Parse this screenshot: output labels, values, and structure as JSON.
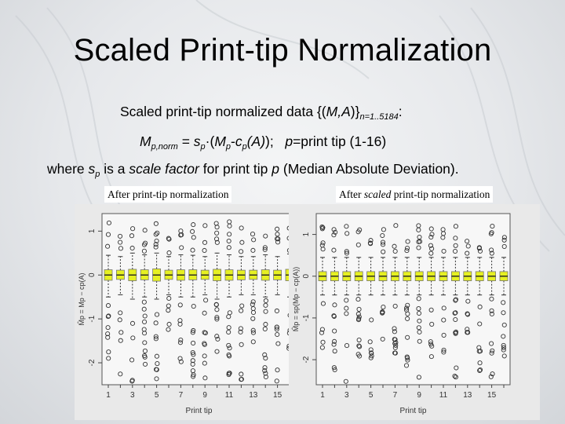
{
  "title": "Scaled Print-tip Normalization",
  "line1": {
    "text": "Scaled print-tip normalized data {(",
    "math": "M,A",
    "close": ")}",
    "sub": "n=1..5184",
    "colon": ":"
  },
  "line2": {
    "m": "M",
    "m_sub": "p,norm",
    "eq": " = ",
    "s": "s",
    "s_sub": "p",
    "dot": "·(",
    "mp": "M",
    "mp_sub": "p",
    "dash": "-",
    "c": "c",
    "c_sub": "p",
    "a": "(A)",
    "end": "); ",
    "p": "p",
    "tail": "=print tip (1-16)"
  },
  "line3": {
    "pre": "where ",
    "s": "s",
    "s_sub": "p",
    "mid": " is a ",
    "scale": "scale factor",
    "mid2": " for print tip ",
    "p": "p",
    "tail": " (Median Absolute Deviation)."
  },
  "panels": {
    "left_label": "After print-tip normalization",
    "right_label_pre": "After ",
    "right_label_em": "scaled",
    "right_label_post": " print-tip normalization"
  },
  "chart_data": [
    {
      "type": "box",
      "title": "After print-tip normalization",
      "xlabel": "Print tip",
      "ylabel": "M̂p = Mp − cp(A)",
      "x_tick_labels": [
        "1",
        "3",
        "5",
        "7",
        "9",
        "11",
        "13",
        "15"
      ],
      "y_ticks": [
        -2,
        -1,
        0,
        1
      ],
      "ylim": [
        -2.5,
        1.4
      ],
      "categories": [
        1,
        2,
        3,
        4,
        5,
        6,
        7,
        8,
        9,
        10,
        11,
        12,
        13,
        14,
        15,
        16
      ],
      "medians": [
        0,
        0,
        0,
        0,
        0,
        0,
        0,
        0,
        0,
        0,
        0,
        0,
        0,
        0,
        0,
        0
      ],
      "q1": [
        -0.12,
        -0.1,
        -0.13,
        -0.11,
        -0.14,
        -0.1,
        -0.12,
        -0.11,
        -0.1,
        -0.13,
        -0.12,
        -0.11,
        -0.1,
        -0.12,
        -0.11,
        -0.13
      ],
      "q3": [
        0.12,
        0.11,
        0.13,
        0.12,
        0.14,
        0.11,
        0.12,
        0.12,
        0.11,
        0.13,
        0.12,
        0.11,
        0.11,
        0.12,
        0.11,
        0.13
      ],
      "whisker_low": [
        -0.5,
        -0.45,
        -0.55,
        -0.5,
        -0.55,
        -0.45,
        -0.5,
        -0.5,
        -0.45,
        -0.55,
        -0.5,
        -0.45,
        -0.45,
        -0.5,
        -0.45,
        -0.5
      ],
      "whisker_high": [
        0.45,
        0.42,
        0.5,
        0.46,
        0.5,
        0.42,
        0.46,
        0.45,
        0.42,
        0.5,
        0.46,
        0.42,
        0.42,
        0.46,
        0.42,
        0.48
      ],
      "box_color": "#e6f022",
      "outlier_color": "#333333"
    },
    {
      "type": "box",
      "title": "After scaled print-tip normalization",
      "xlabel": "Print tip",
      "ylabel": "M̂p = sp(Mp − cp(A))",
      "x_tick_labels": [
        "1",
        "3",
        "5",
        "7",
        "9",
        "11",
        "13",
        "15"
      ],
      "y_ticks": [
        -2,
        -1,
        0,
        1
      ],
      "ylim": [
        -2.6,
        1.5
      ],
      "categories": [
        1,
        2,
        3,
        4,
        5,
        6,
        7,
        8,
        9,
        10,
        11,
        12,
        13,
        14,
        15,
        16
      ],
      "medians": [
        0,
        0,
        0,
        0,
        0,
        0,
        0,
        0,
        0,
        0,
        0,
        0,
        0,
        0,
        0,
        0
      ],
      "q1": [
        -0.11,
        -0.11,
        -0.11,
        -0.11,
        -0.11,
        -0.11,
        -0.11,
        -0.11,
        -0.11,
        -0.11,
        -0.11,
        -0.11,
        -0.11,
        -0.11,
        -0.11,
        -0.11
      ],
      "q3": [
        0.11,
        0.11,
        0.11,
        0.11,
        0.11,
        0.11,
        0.11,
        0.11,
        0.11,
        0.11,
        0.11,
        0.11,
        0.11,
        0.11,
        0.11,
        0.11
      ],
      "whisker_low": [
        -0.45,
        -0.45,
        -0.45,
        -0.45,
        -0.45,
        -0.45,
        -0.45,
        -0.45,
        -0.45,
        -0.45,
        -0.45,
        -0.45,
        -0.45,
        -0.45,
        -0.45,
        -0.45
      ],
      "whisker_high": [
        0.45,
        0.45,
        0.45,
        0.45,
        0.45,
        0.45,
        0.45,
        0.45,
        0.45,
        0.45,
        0.45,
        0.45,
        0.45,
        0.45,
        0.45,
        0.45
      ],
      "box_color": "#e6f022",
      "outlier_color": "#333333"
    }
  ]
}
